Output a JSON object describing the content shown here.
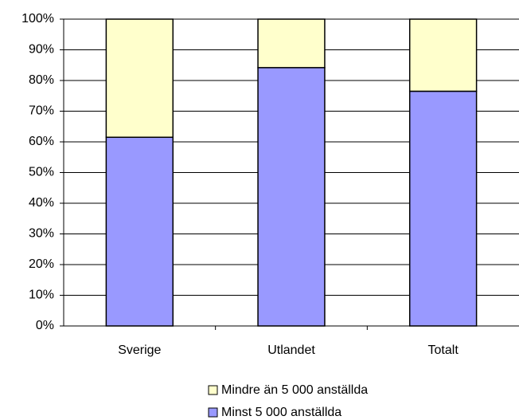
{
  "chart_data": {
    "type": "stacked_bar",
    "categories": [
      "Sverige",
      "Utlandet",
      "Totalt"
    ],
    "series": [
      {
        "name": "Minst 5 000 anställda",
        "color": "#9999ff",
        "values": [
          61.5,
          84.2,
          76.5
        ]
      },
      {
        "name": "Mindre än 5 000 anställda",
        "color": "#ffffcc",
        "values": [
          38.5,
          15.8,
          23.5
        ]
      }
    ],
    "ylim": [
      0,
      100
    ],
    "yticks": [
      {
        "value": 0,
        "label": "0%"
      },
      {
        "value": 10,
        "label": "10%"
      },
      {
        "value": 20,
        "label": "20%"
      },
      {
        "value": 30,
        "label": "30%"
      },
      {
        "value": 40,
        "label": "40%"
      },
      {
        "value": 50,
        "label": "50%"
      },
      {
        "value": 60,
        "label": "60%"
      },
      {
        "value": 70,
        "label": "70%"
      },
      {
        "value": 80,
        "label": "80%"
      },
      {
        "value": 90,
        "label": "90%"
      },
      {
        "value": 100,
        "label": "100%"
      }
    ],
    "grid": true
  }
}
